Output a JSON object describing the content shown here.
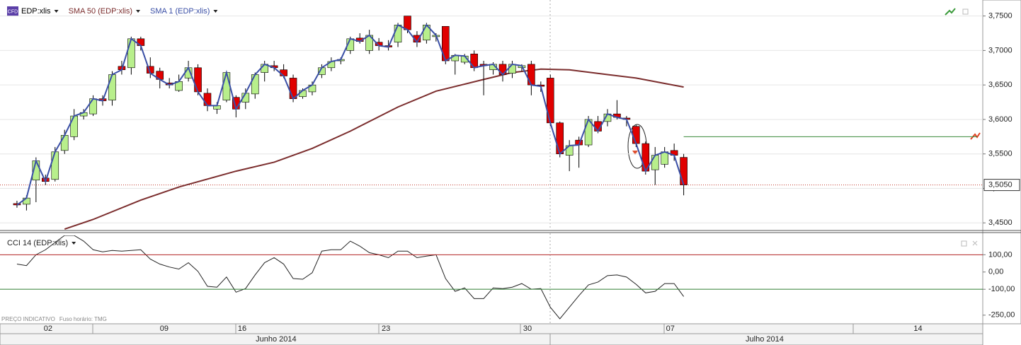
{
  "chart_data": [
    {
      "type": "candlestick",
      "symbol_badge": "CFD",
      "series": [
        {
          "name": "EDP:xlis",
          "color": "#000000",
          "up_color": "#b8ef8c",
          "down_color": "#e00000",
          "open": [
            3.478,
            3.477,
            3.512,
            3.515,
            3.513,
            3.555,
            3.575,
            3.605,
            3.608,
            3.63,
            3.628,
            3.677,
            3.675,
            3.717,
            3.677,
            3.67,
            3.653,
            3.642,
            3.66,
            3.675,
            3.638,
            3.615,
            3.628,
            3.632,
            3.625,
            3.637,
            3.668,
            3.678,
            3.672,
            3.66,
            3.633,
            3.64,
            3.665,
            3.675,
            3.685,
            3.7,
            3.718,
            3.7,
            3.712,
            3.707,
            3.712,
            3.75,
            3.722,
            3.715,
            3.72,
            3.735,
            3.685,
            3.683,
            3.695,
            3.68,
            3.672,
            3.68,
            3.667,
            3.675,
            3.68,
            3.65,
            3.66,
            3.595,
            3.548,
            3.57,
            3.563,
            3.597,
            3.597,
            3.608,
            3.602,
            3.59,
            3.565,
            3.527,
            3.535,
            3.555,
            3.545
          ],
          "high": [
            3.482,
            3.49,
            3.545,
            3.52,
            3.56,
            3.585,
            3.615,
            3.615,
            3.635,
            3.635,
            3.67,
            3.685,
            3.72,
            3.72,
            3.69,
            3.675,
            3.66,
            3.665,
            3.685,
            3.68,
            3.645,
            3.625,
            3.67,
            3.635,
            3.645,
            3.668,
            3.685,
            3.685,
            3.68,
            3.665,
            3.645,
            3.655,
            3.68,
            3.69,
            3.69,
            3.72,
            3.725,
            3.73,
            3.718,
            3.715,
            3.74,
            3.75,
            3.728,
            3.74,
            3.725,
            3.735,
            3.695,
            3.695,
            3.7,
            3.685,
            3.683,
            3.685,
            3.685,
            3.68,
            3.685,
            3.655,
            3.665,
            3.597,
            3.57,
            3.575,
            3.605,
            3.605,
            3.615,
            3.628,
            3.605,
            3.592,
            3.568,
            3.56,
            3.56,
            3.565,
            3.55
          ],
          "low": [
            3.472,
            3.468,
            3.48,
            3.505,
            3.51,
            3.55,
            3.57,
            3.6,
            3.605,
            3.62,
            3.62,
            3.665,
            3.665,
            3.7,
            3.66,
            3.645,
            3.645,
            3.64,
            3.655,
            3.635,
            3.612,
            3.608,
            3.625,
            3.603,
            3.615,
            3.63,
            3.655,
            3.67,
            3.66,
            3.625,
            3.63,
            3.635,
            3.66,
            3.67,
            3.68,
            3.695,
            3.71,
            3.695,
            3.7,
            3.7,
            3.705,
            3.725,
            3.705,
            3.71,
            3.713,
            3.68,
            3.665,
            3.68,
            3.67,
            3.635,
            3.665,
            3.655,
            3.66,
            3.67,
            3.635,
            3.64,
            3.59,
            3.545,
            3.525,
            3.53,
            3.56,
            3.58,
            3.59,
            3.6,
            3.59,
            3.56,
            3.52,
            3.505,
            3.53,
            3.54,
            3.49
          ],
          "close": [
            3.476,
            3.486,
            3.54,
            3.51,
            3.553,
            3.577,
            3.605,
            3.61,
            3.63,
            3.627,
            3.665,
            3.672,
            3.717,
            3.707,
            3.667,
            3.658,
            3.65,
            3.655,
            3.675,
            3.64,
            3.62,
            3.62,
            3.668,
            3.615,
            3.638,
            3.665,
            3.68,
            3.675,
            3.663,
            3.63,
            3.642,
            3.65,
            3.675,
            3.684,
            3.687,
            3.717,
            3.713,
            3.722,
            3.707,
            3.705,
            3.737,
            3.73,
            3.712,
            3.737,
            3.722,
            3.685,
            3.693,
            3.692,
            3.675,
            3.678,
            3.68,
            3.665,
            3.68,
            3.678,
            3.65,
            3.648,
            3.595,
            3.55,
            3.562,
            3.563,
            3.6,
            3.583,
            3.608,
            3.603,
            3.6,
            3.565,
            3.525,
            3.548,
            3.553,
            3.548,
            3.505
          ]
        },
        {
          "name": "SMA 50 (EDP:xlis)",
          "color": "#7b2d2d",
          "x": [
            5,
            8,
            13,
            17,
            23,
            27,
            31,
            35,
            40,
            44,
            49,
            52,
            55,
            58,
            62,
            65,
            70
          ],
          "values": [
            3.441,
            3.455,
            3.483,
            3.502,
            3.525,
            3.538,
            3.558,
            3.583,
            3.618,
            3.641,
            3.658,
            3.668,
            3.673,
            3.672,
            3.665,
            3.66,
            3.647
          ]
        },
        {
          "name": "SMA 1 (EDP:xlis)",
          "color": "#3a4fa6"
        }
      ],
      "xlim": [
        -1.78,
        101.4
      ],
      "ylim": [
        3.44,
        3.765
      ],
      "yticks": [
        {
          "value": 3.45,
          "label": "3,4500"
        },
        {
          "value": 3.5,
          "label": "3,5000"
        },
        {
          "value": 3.55,
          "label": "3,5500"
        },
        {
          "value": 3.6,
          "label": "3,6000"
        },
        {
          "value": 3.65,
          "label": "3,6500"
        },
        {
          "value": 3.7,
          "label": "3,7000"
        },
        {
          "value": 3.75,
          "label": "3,7500"
        }
      ],
      "xticks": [
        {
          "value": 3.27,
          "label": "02"
        },
        {
          "value": 15.46,
          "label": "09"
        },
        {
          "value": 23.64,
          "label": "16"
        },
        {
          "value": 38.74,
          "label": "23"
        },
        {
          "value": 53.6,
          "label": "30"
        },
        {
          "value": 68.6,
          "label": "07"
        },
        {
          "value": 94.6,
          "label": "14"
        }
      ],
      "month_ticks": [
        {
          "value": 27.2,
          "label": "Junho 2014"
        },
        {
          "value": 78.5,
          "label": "Julho 2014"
        }
      ],
      "current_price": {
        "value": 3.505,
        "label": "3,5050"
      },
      "alert_level": 3.575,
      "grid": true,
      "footer": [
        "PREÇO INDICATIVO",
        "Fuso horário: TMG"
      ]
    },
    {
      "type": "line",
      "series": [
        {
          "name": "CCI 14 (EDP:xlis)",
          "color": "#222222",
          "values": [
            46,
            37,
            100,
            129,
            171,
            212,
            212,
            179,
            129,
            117,
            125,
            121,
            125,
            129,
            75,
            46,
            29,
            17,
            54,
            4,
            -83,
            -88,
            -29,
            -117,
            -96,
            -17,
            54,
            83,
            46,
            -38,
            -42,
            -4,
            121,
            129,
            129,
            179,
            150,
            112,
            100,
            83,
            121,
            121,
            83,
            92,
            100,
            -38,
            -112,
            -92,
            -154,
            -154,
            -92,
            -96,
            -88,
            -67,
            -100,
            -96,
            -204,
            -271,
            -204,
            -137,
            -75,
            -58,
            -21,
            -17,
            -29,
            -71,
            -121,
            -112,
            -67,
            -67,
            -142
          ]
        }
      ],
      "ylim": [
        -300,
        212
      ],
      "yticks": [
        {
          "value": 100,
          "label": "100,00"
        },
        {
          "value": 0,
          "label": "0,00"
        },
        {
          "value": -100,
          "label": "-100,00"
        },
        {
          "value": -250,
          "label": "-250,00"
        }
      ],
      "levels": [
        {
          "value": 100,
          "color": "#b22222"
        },
        {
          "value": -100,
          "color": "#2e7d32"
        }
      ]
    }
  ]
}
